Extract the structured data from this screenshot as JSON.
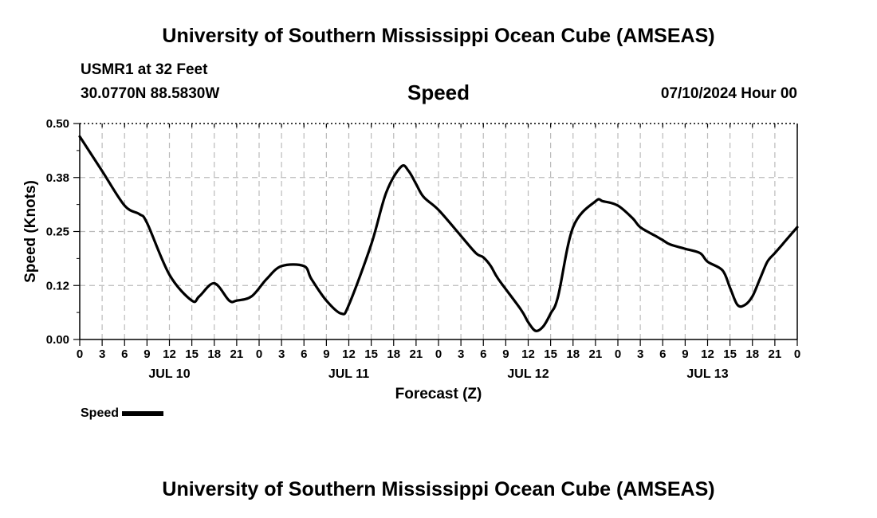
{
  "header": {
    "title": "University of Southern Mississippi Ocean Cube (AMSEAS)",
    "station": "USMR1 at 32 Feet",
    "coords": "30.0770N  88.5830W",
    "chart_title": "Speed",
    "datestamp": "07/10/2024 Hour 00"
  },
  "footer": {
    "title": "University of Southern Mississippi Ocean Cube (AMSEAS)"
  },
  "legend": {
    "label": "Speed"
  },
  "colors": {
    "line": "#000000",
    "grid": "#bbbbbb",
    "background": "#ffffff"
  },
  "chart_data": {
    "type": "line",
    "title": "Speed",
    "xlabel": "Forecast (Z)",
    "ylabel": "Speed (Knots)",
    "xlim": [
      0,
      96
    ],
    "ylim": [
      0,
      0.5
    ],
    "y_ticks": [
      "0.00",
      "0.12",
      "0.25",
      "0.38",
      "0.50"
    ],
    "x_tick_labels": [
      "0",
      "3",
      "6",
      "9",
      "12",
      "15",
      "18",
      "21",
      "0",
      "3",
      "6",
      "9",
      "12",
      "15",
      "18",
      "21",
      "0",
      "3",
      "6",
      "9",
      "12",
      "15",
      "18",
      "21",
      "0",
      "3",
      "6",
      "9",
      "12",
      "15",
      "18",
      "21",
      "0"
    ],
    "day_labels": [
      {
        "label": "JUL 10",
        "hour": 12
      },
      {
        "label": "JUL 11",
        "hour": 36
      },
      {
        "label": "JUL 12",
        "hour": 60
      },
      {
        "label": "JUL 13",
        "hour": 84
      }
    ],
    "series": [
      {
        "name": "Speed",
        "x": [
          0,
          3,
          6,
          8,
          9,
          12,
          15,
          16,
          18,
          20,
          21,
          23,
          25,
          27,
          30,
          31,
          33,
          35,
          36,
          39,
          41,
          43,
          44,
          45,
          46,
          48,
          51,
          53,
          54,
          55,
          56,
          59,
          60,
          61,
          62,
          63,
          64,
          66,
          69,
          70,
          72,
          74,
          75,
          77,
          78,
          79,
          81,
          83,
          84,
          86,
          87,
          88,
          89,
          90,
          91,
          92,
          93,
          94,
          96
        ],
        "values": [
          0.47,
          0.39,
          0.31,
          0.29,
          0.27,
          0.15,
          0.09,
          0.1,
          0.13,
          0.09,
          0.09,
          0.1,
          0.14,
          0.17,
          0.17,
          0.14,
          0.09,
          0.06,
          0.08,
          0.22,
          0.34,
          0.4,
          0.39,
          0.36,
          0.33,
          0.3,
          0.24,
          0.2,
          0.19,
          0.17,
          0.14,
          0.07,
          0.04,
          0.02,
          0.03,
          0.06,
          0.1,
          0.26,
          0.32,
          0.32,
          0.31,
          0.28,
          0.26,
          0.24,
          0.23,
          0.22,
          0.21,
          0.2,
          0.18,
          0.16,
          0.12,
          0.08,
          0.08,
          0.1,
          0.14,
          0.18,
          0.2,
          0.22,
          0.26
        ]
      }
    ]
  }
}
